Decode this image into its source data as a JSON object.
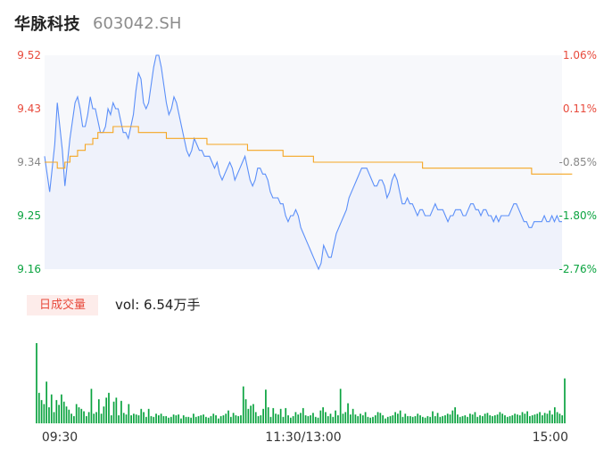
{
  "header": {
    "name": "华脉科技",
    "code": "603042.SH"
  },
  "volume_panel": {
    "label": "日成交量",
    "summary_prefix": "vol: ",
    "summary_value": "6.54万手"
  },
  "colors": {
    "price_line": "#5b8ff9",
    "avg_line": "#f5a623",
    "up": "#e84a3c",
    "down": "#0aa33f",
    "neutral": "#888888"
  },
  "chart_data": [
    {
      "type": "line",
      "title": "",
      "x_range": [
        "09:30",
        "15:00"
      ],
      "x_ticks": [
        "09:30",
        "11:30/13:00",
        "15:00"
      ],
      "y_left_ticks": [
        "9.52",
        "9.43",
        "9.34",
        "9.25",
        "9.16"
      ],
      "y_right_ticks": [
        "1.06%",
        "0.11%",
        "-0.85%",
        "-1.80%",
        "-2.76%"
      ],
      "ylim": [
        9.16,
        9.52
      ],
      "reference_price": 9.34,
      "series": [
        {
          "key": "price",
          "values": [
            9.35,
            9.32,
            9.29,
            9.33,
            9.37,
            9.44,
            9.4,
            9.36,
            9.3,
            9.34,
            9.38,
            9.41,
            9.44,
            9.45,
            9.43,
            9.4,
            9.4,
            9.42,
            9.45,
            9.43,
            9.43,
            9.41,
            9.39,
            9.39,
            9.4,
            9.43,
            9.42,
            9.44,
            9.43,
            9.43,
            9.41,
            9.39,
            9.39,
            9.38,
            9.4,
            9.42,
            9.46,
            9.49,
            9.48,
            9.44,
            9.43,
            9.44,
            9.47,
            9.5,
            9.52,
            9.52,
            9.5,
            9.47,
            9.44,
            9.42,
            9.43,
            9.45,
            9.44,
            9.42,
            9.4,
            9.38,
            9.36,
            9.35,
            9.36,
            9.38,
            9.37,
            9.36,
            9.36,
            9.35,
            9.35,
            9.35,
            9.34,
            9.33,
            9.34,
            9.32,
            9.31,
            9.32,
            9.33,
            9.34,
            9.33,
            9.31,
            9.32,
            9.33,
            9.34,
            9.35,
            9.33,
            9.31,
            9.3,
            9.31,
            9.33,
            9.33,
            9.32,
            9.32,
            9.31,
            9.29,
            9.28,
            9.28,
            9.28,
            9.27,
            9.27,
            9.25,
            9.24,
            9.25,
            9.25,
            9.26,
            9.25,
            9.23,
            9.22,
            9.21,
            9.2,
            9.19,
            9.18,
            9.17,
            9.16,
            9.17,
            9.2,
            9.19,
            9.18,
            9.18,
            9.2,
            9.22,
            9.23,
            9.24,
            9.25,
            9.26,
            9.28,
            9.29,
            9.3,
            9.31,
            9.32,
            9.33,
            9.33,
            9.33,
            9.32,
            9.31,
            9.3,
            9.3,
            9.31,
            9.31,
            9.3,
            9.28,
            9.29,
            9.31,
            9.32,
            9.31,
            9.29,
            9.27,
            9.27,
            9.28,
            9.27,
            9.27,
            9.26,
            9.25,
            9.26,
            9.26,
            9.25,
            9.25,
            9.25,
            9.26,
            9.27,
            9.26,
            9.26,
            9.26,
            9.25,
            9.24,
            9.25,
            9.25,
            9.26,
            9.26,
            9.26,
            9.25,
            9.25,
            9.26,
            9.27,
            9.27,
            9.26,
            9.26,
            9.25,
            9.26,
            9.26,
            9.25,
            9.25,
            9.24,
            9.25,
            9.24,
            9.25,
            9.25,
            9.25,
            9.25,
            9.26,
            9.27,
            9.27,
            9.26,
            9.25,
            9.24,
            9.24,
            9.23,
            9.23,
            9.24,
            9.24,
            9.24,
            9.24,
            9.25,
            9.24,
            9.24,
            9.25,
            9.24,
            9.25,
            9.24,
            9.24
          ]
        },
        {
          "key": "average",
          "values": [
            9.34,
            9.34,
            9.34,
            9.34,
            9.34,
            9.33,
            9.33,
            9.33,
            9.34,
            9.34,
            9.35,
            9.35,
            9.35,
            9.36,
            9.36,
            9.36,
            9.37,
            9.37,
            9.37,
            9.38,
            9.38,
            9.39,
            9.39,
            9.39,
            9.39,
            9.39,
            9.39,
            9.4,
            9.4,
            9.4,
            9.4,
            9.4,
            9.4,
            9.4,
            9.4,
            9.4,
            9.4,
            9.39,
            9.39,
            9.39,
            9.39,
            9.39,
            9.39,
            9.39,
            9.39,
            9.39,
            9.39,
            9.39,
            9.38,
            9.38,
            9.38,
            9.38,
            9.38,
            9.38,
            9.38,
            9.38,
            9.38,
            9.38,
            9.38,
            9.38,
            9.38,
            9.38,
            9.38,
            9.38,
            9.37,
            9.37,
            9.37,
            9.37,
            9.37,
            9.37,
            9.37,
            9.37,
            9.37,
            9.37,
            9.37,
            9.37,
            9.37,
            9.37,
            9.37,
            9.37,
            9.36,
            9.36,
            9.36,
            9.36,
            9.36,
            9.36,
            9.36,
            9.36,
            9.36,
            9.36,
            9.36,
            9.36,
            9.36,
            9.36,
            9.35,
            9.35,
            9.35,
            9.35,
            9.35,
            9.35,
            9.35,
            9.35,
            9.35,
            9.35,
            9.35,
            9.35,
            9.34,
            9.34,
            9.34,
            9.34,
            9.34,
            9.34,
            9.34,
            9.34,
            9.34,
            9.34,
            9.34,
            9.34,
            9.34,
            9.34,
            9.34,
            9.34,
            9.34,
            9.34,
            9.34,
            9.34,
            9.34,
            9.34,
            9.34,
            9.34,
            9.34,
            9.34,
            9.34,
            9.34,
            9.34,
            9.34,
            9.34,
            9.34,
            9.34,
            9.34,
            9.34,
            9.34,
            9.34,
            9.34,
            9.34,
            9.34,
            9.34,
            9.34,
            9.34,
            9.33,
            9.33,
            9.33,
            9.33,
            9.33,
            9.33,
            9.33,
            9.33,
            9.33,
            9.33,
            9.33,
            9.33,
            9.33,
            9.33,
            9.33,
            9.33,
            9.33,
            9.33,
            9.33,
            9.33,
            9.33,
            9.33,
            9.33,
            9.33,
            9.33,
            9.33,
            9.33,
            9.33,
            9.33,
            9.33,
            9.33,
            9.33,
            9.33,
            9.33,
            9.33,
            9.33,
            9.33,
            9.33,
            9.33,
            9.33,
            9.33,
            9.33,
            9.33,
            9.32,
            9.32,
            9.32,
            9.32,
            9.32,
            9.32,
            9.32,
            9.32,
            9.32,
            9.32,
            9.32,
            9.32,
            9.32,
            9.32,
            9.32,
            9.32,
            9.32
          ]
        }
      ]
    },
    {
      "type": "bar",
      "title": "",
      "ylim": [
        0,
        100
      ],
      "series": [
        {
          "key": "volume",
          "values": [
            100,
            38,
            29,
            24,
            52,
            20,
            36,
            14,
            29,
            23,
            36,
            27,
            21,
            17,
            12,
            9,
            24,
            20,
            18,
            15,
            9,
            14,
            43,
            12,
            14,
            30,
            12,
            21,
            32,
            38,
            10,
            27,
            32,
            10,
            28,
            13,
            11,
            24,
            10,
            12,
            11,
            10,
            18,
            14,
            8,
            18,
            9,
            8,
            12,
            10,
            12,
            9,
            9,
            7,
            8,
            11,
            10,
            11,
            6,
            10,
            8,
            8,
            7,
            12,
            8,
            9,
            10,
            11,
            8,
            7,
            9,
            12,
            10,
            6,
            9,
            10,
            12,
            16,
            8,
            13,
            10,
            9,
            10,
            46,
            30,
            18,
            22,
            24,
            14,
            9,
            10,
            18,
            42,
            20,
            8,
            19,
            12,
            11,
            18,
            8,
            19,
            10,
            7,
            9,
            14,
            11,
            13,
            19,
            10,
            9,
            10,
            13,
            8,
            7,
            16,
            20,
            14,
            9,
            12,
            8,
            16,
            10,
            43,
            12,
            14,
            25,
            11,
            18,
            11,
            9,
            12,
            10,
            14,
            8,
            7,
            8,
            10,
            14,
            13,
            10,
            6,
            8,
            9,
            10,
            14,
            12,
            16,
            8,
            12,
            9,
            9,
            8,
            9,
            12,
            10,
            8,
            7,
            9,
            8,
            15,
            9,
            13,
            8,
            9,
            10,
            12,
            11,
            16,
            20,
            11,
            8,
            9,
            10,
            8,
            12,
            11,
            14,
            8,
            10,
            9,
            12,
            13,
            10,
            9,
            10,
            11,
            14,
            12,
            10,
            8,
            9,
            10,
            12,
            11,
            10,
            14,
            12,
            15,
            9,
            10,
            11,
            12,
            14,
            10,
            13,
            12,
            16,
            11,
            20,
            14,
            12,
            10,
            56
          ],
          "up_down": "mmmmmmmmmmmmmmmmmmmmmmmmmmmmmmmmmmmmmmmmmmmmmmmmmmmmmmmmmmmmmmmmmmmmmmmmmmmmmmmmmmmmmmmmmmmmmmmmmmmmmmmmmmmmmmmmmmmmmmmmmmmmmmmmmmmmmmmmmmmmmmmmmmmmmmmmmmmmmmmmmmmmmmmmmmmmmmmmmmmmmmmmmmmmmmmmmmmmmmmmmmmmmmmmmmmmmmm"
        }
      ]
    }
  ]
}
